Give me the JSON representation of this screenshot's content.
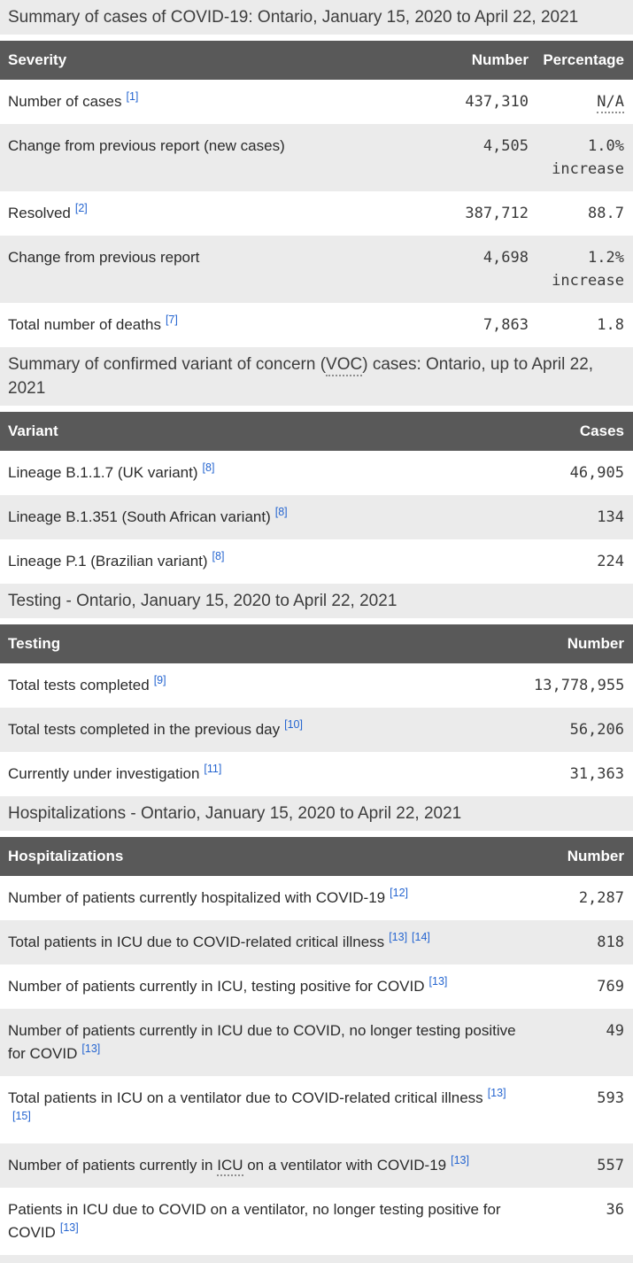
{
  "colors": {
    "header_bg": "#595959",
    "header_text": "#ffffff",
    "stripe_bg": "#ebebeb",
    "caption_bg": "#ebebeb",
    "footnote_link": "#2565d0",
    "body_text": "#333333"
  },
  "tables": [
    {
      "caption": "Summary of cases of COVID-19: Ontario, January 15, 2020 to April 22, 2021",
      "columns": [
        "Severity",
        "Number",
        "Percentage"
      ],
      "rows": [
        {
          "label": "Number of cases",
          "footnotes": [
            "[1]"
          ],
          "number": "437,310",
          "percentage": "N/A",
          "percentage_abbr": "N/A"
        },
        {
          "label": "Change from previous report (new cases)",
          "footnotes": [],
          "number": "4,505",
          "percentage": "1.0% increase"
        },
        {
          "label": "Resolved",
          "footnotes": [
            "[2]"
          ],
          "number": "387,712",
          "percentage": "88.7"
        },
        {
          "label": "Change from previous report",
          "footnotes": [],
          "number": "4,698",
          "percentage": "1.2% increase"
        },
        {
          "label": "Total number of deaths",
          "footnotes": [
            "[7]"
          ],
          "number": "7,863",
          "percentage": "1.8"
        }
      ]
    },
    {
      "caption": "Summary of confirmed variant of concern (VOC) cases: Ontario, up to April 22, 2021",
      "caption_abbr": "VOC",
      "columns": [
        "Variant",
        "Cases"
      ],
      "rows": [
        {
          "label": "Lineage B.1.1.7 (UK variant)",
          "footnotes": [
            "[8]"
          ],
          "number": "46,905"
        },
        {
          "label": "Lineage B.1.351 (South African variant)",
          "footnotes": [
            "[8]"
          ],
          "number": "134"
        },
        {
          "label": "Lineage P.1 (Brazilian variant)",
          "footnotes": [
            "[8]"
          ],
          "number": "224"
        }
      ]
    },
    {
      "caption": "Testing - Ontario, January 15, 2020 to April 22, 2021",
      "columns": [
        "Testing",
        "Number"
      ],
      "rows": [
        {
          "label": "Total tests completed",
          "footnotes": [
            "[9]"
          ],
          "number": "13,778,955"
        },
        {
          "label": "Total tests completed in the previous day",
          "footnotes": [
            "[10]"
          ],
          "number": "56,206"
        },
        {
          "label": "Currently under investigation",
          "footnotes": [
            "[11]"
          ],
          "number": "31,363"
        }
      ]
    },
    {
      "caption": "Hospitalizations - Ontario, January 15, 2020 to April 22, 2021",
      "columns": [
        "Hospitalizations",
        "Number"
      ],
      "rows": [
        {
          "label": "Number of patients currently hospitalized with COVID-19",
          "footnotes": [
            "[12]"
          ],
          "number": "2,287"
        },
        {
          "label": "Total patients in ICU due to COVID-related critical illness",
          "footnotes": [
            "[13]",
            "[14]"
          ],
          "number": "818"
        },
        {
          "label": "Number of patients currently in ICU, testing positive for COVID",
          "footnotes": [
            "[13]"
          ],
          "number": "769"
        },
        {
          "label": "Number of patients currently in ICU due to COVID, no longer testing positive for COVID",
          "footnotes": [
            "[13]"
          ],
          "number": "49"
        },
        {
          "label": "Total patients in ICU on a ventilator due to COVID-related critical illness",
          "footnotes": [
            "[13]",
            "[15]"
          ],
          "number": "593"
        },
        {
          "label": "Number of patients currently in ICU on a ventilator with COVID-19",
          "footnotes": [
            "[13]"
          ],
          "number": "557",
          "label_abbr": "ICU"
        },
        {
          "label": "Patients in ICU due to COVID on a ventilator, no longer testing positive for COVID",
          "footnotes": [
            "[13]"
          ],
          "number": "36"
        }
      ]
    }
  ]
}
